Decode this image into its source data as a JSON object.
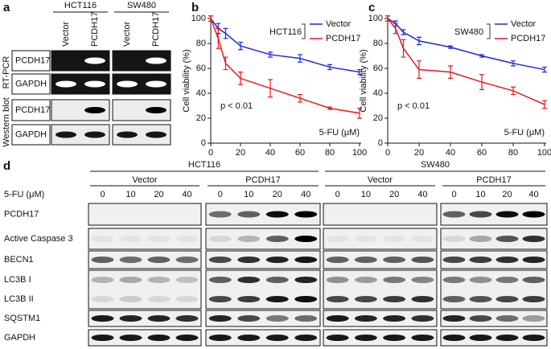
{
  "panels": {
    "a": {
      "label": "a",
      "cell_lines": [
        "HCT116",
        "SW480"
      ],
      "lanes": [
        "Vector",
        "PCDH17"
      ],
      "row_labels": [
        "PCDH17",
        "GAPDH",
        "PCDH17",
        "GAPDH"
      ],
      "sections": [
        "RT-PCR",
        "Western blot"
      ]
    },
    "d": {
      "label": "d",
      "cell_lines": [
        "HCT116",
        "SW480"
      ],
      "groups": [
        "Vector",
        "PCDH17",
        "Vector",
        "PCDH17"
      ],
      "dose_label": "5-FU (μM)",
      "doses": [
        "0",
        "10",
        "20",
        "40"
      ],
      "row_labels": [
        "PCDH17",
        "Active Caspase 3",
        "BECN1",
        "LC3B I",
        "LC3B II",
        "SQSTM1",
        "GAPDH"
      ]
    }
  },
  "chart_data": [
    {
      "type": "line",
      "panel_label": "b",
      "legend_title": "HCT116",
      "annotation": "p < 0.01",
      "xlabel": "5-FU (μM)",
      "ylabel": "Cell viability (%)",
      "x": [
        0,
        5,
        10,
        20,
        40,
        60,
        80,
        100
      ],
      "series": [
        {
          "name": "Vector",
          "color": "#1f2bd6",
          "values": [
            100,
            92,
            88,
            78,
            71,
            68,
            61,
            57
          ],
          "errors": [
            2,
            4,
            4,
            3,
            2,
            3,
            2,
            2
          ]
        },
        {
          "name": "PCDH17",
          "color": "#e8191f",
          "values": [
            100,
            84,
            64,
            52,
            44,
            36,
            28,
            24
          ],
          "errors": [
            2,
            8,
            5,
            5,
            7,
            3,
            1,
            4
          ]
        }
      ],
      "xlim": [
        0,
        100
      ],
      "ylim": [
        0,
        100
      ],
      "xticks": [
        0,
        20,
        40,
        60,
        80,
        100
      ],
      "yticks": [
        0,
        20,
        40,
        60,
        80,
        100
      ]
    },
    {
      "type": "line",
      "panel_label": "c",
      "legend_title": "SW480",
      "annotation": "p < 0.01",
      "xlabel": "5-FU (μM)",
      "ylabel": "Cell viability (%)",
      "x": [
        0,
        5,
        10,
        20,
        40,
        60,
        80,
        100
      ],
      "series": [
        {
          "name": "Vector",
          "color": "#1f2bd6",
          "values": [
            100,
            96,
            89,
            82,
            77,
            70,
            64,
            59
          ],
          "errors": [
            2,
            2,
            2,
            3,
            1,
            1,
            2,
            2
          ]
        },
        {
          "name": "PCDH17",
          "color": "#e8191f",
          "values": [
            100,
            92,
            76,
            59,
            57,
            49,
            42,
            31
          ],
          "errors": [
            2,
            4,
            7,
            7,
            5,
            6,
            3,
            3
          ]
        }
      ],
      "xlim": [
        0,
        100
      ],
      "ylim": [
        0,
        100
      ],
      "xticks": [
        0,
        20,
        40,
        60,
        80,
        100
      ],
      "yticks": [
        0,
        20,
        40,
        60,
        80,
        100
      ]
    }
  ]
}
